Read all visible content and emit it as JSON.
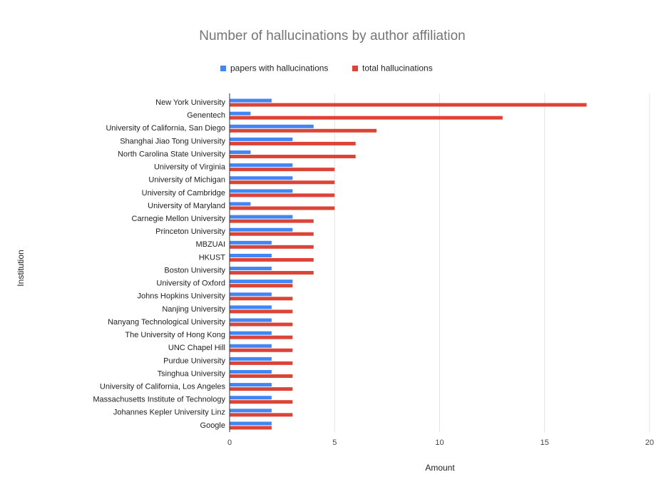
{
  "chart_data": {
    "type": "bar",
    "orientation": "horizontal",
    "title": "Number of hallucinations by author affiliation",
    "x_label": "Amount",
    "y_label": "Institution",
    "categories": [
      "New York University",
      "Genentech",
      "University of California, San Diego",
      "Shanghai Jiao Tong University",
      "North Carolina State University",
      "University of Virginia",
      "University of Michigan",
      "University of Cambridge",
      "University of Maryland",
      "Carnegie Mellon University",
      "Princeton University",
      "MBZUAI",
      "HKUST",
      "Boston University",
      "University of Oxford",
      "Johns Hopkins University",
      "Nanjing University",
      "Nanyang Technological University",
      "The University of Hong Kong",
      "UNC Chapel Hill",
      "Purdue University",
      "Tsinghua University",
      "University of California, Los Angeles",
      "Massachusetts Institute of Technology",
      "Johannes Kepler University Linz",
      "Google"
    ],
    "series": [
      {
        "name": "papers with hallucinations",
        "color": "#4285f4",
        "values": [
          2,
          1,
          4,
          3,
          1,
          3,
          3,
          3,
          1,
          3,
          3,
          2,
          2,
          2,
          3,
          2,
          2,
          2,
          2,
          2,
          2,
          2,
          2,
          2,
          2,
          2
        ]
      },
      {
        "name": "total hallucinations",
        "color": "#db4437",
        "values": [
          17,
          13,
          7,
          6,
          6,
          5,
          5,
          5,
          5,
          4,
          4,
          4,
          4,
          4,
          3,
          3,
          3,
          3,
          3,
          3,
          3,
          3,
          3,
          3,
          3,
          2
        ]
      }
    ],
    "xlim": [
      0,
      20
    ],
    "xticks": [
      0,
      5,
      10,
      15,
      20
    ],
    "grid": true,
    "legend": "top"
  }
}
